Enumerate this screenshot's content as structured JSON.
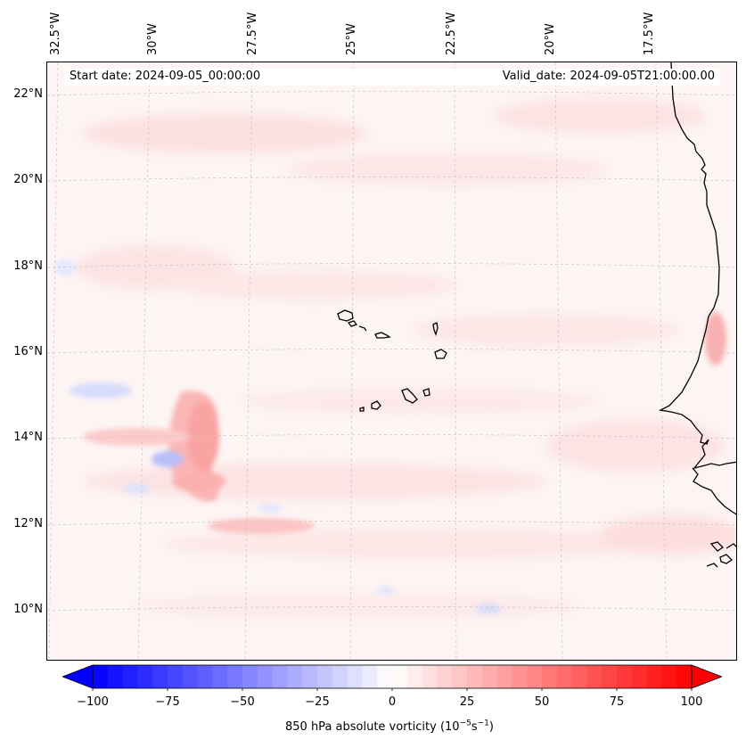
{
  "map": {
    "type": "filled contour map",
    "field": "850 hPa absolute vorticity",
    "start_date_label": "Start date: 2024-09-05_00:00:00",
    "valid_date_label": "Valid_date: 2024-09-05T21:00:00.00",
    "lat_labels": [
      "22°N",
      "20°N",
      "18°N",
      "16°N",
      "14°N",
      "12°N",
      "10°N"
    ],
    "lon_labels": [
      "32.5°W",
      "30°W",
      "27.5°W",
      "25°W",
      "22.5°W",
      "20°W",
      "17.5°W"
    ],
    "grid": true,
    "colormap": "bwr",
    "colors": {
      "negative": "#0000ff",
      "neutral": "#ffffff",
      "positive": "#ff0000",
      "coastline": "#000000",
      "grid": "#bdbdbd"
    },
    "features": [
      "Cape Verde islands",
      "West African coastline"
    ]
  },
  "colorbar": {
    "label_prefix": "850 hPa absolute vorticity (10",
    "label_exp1": "−5",
    "label_mid": "s",
    "label_exp2": "−1",
    "label_suffix": ")",
    "ticks": [
      "−100",
      "−75",
      "−50",
      "−25",
      "0",
      "25",
      "50",
      "75",
      "100"
    ],
    "tick_values": [
      -100,
      -75,
      -50,
      -25,
      0,
      25,
      50,
      75,
      100
    ],
    "range": [
      -100,
      100
    ],
    "levels": 40,
    "extend": "both"
  }
}
